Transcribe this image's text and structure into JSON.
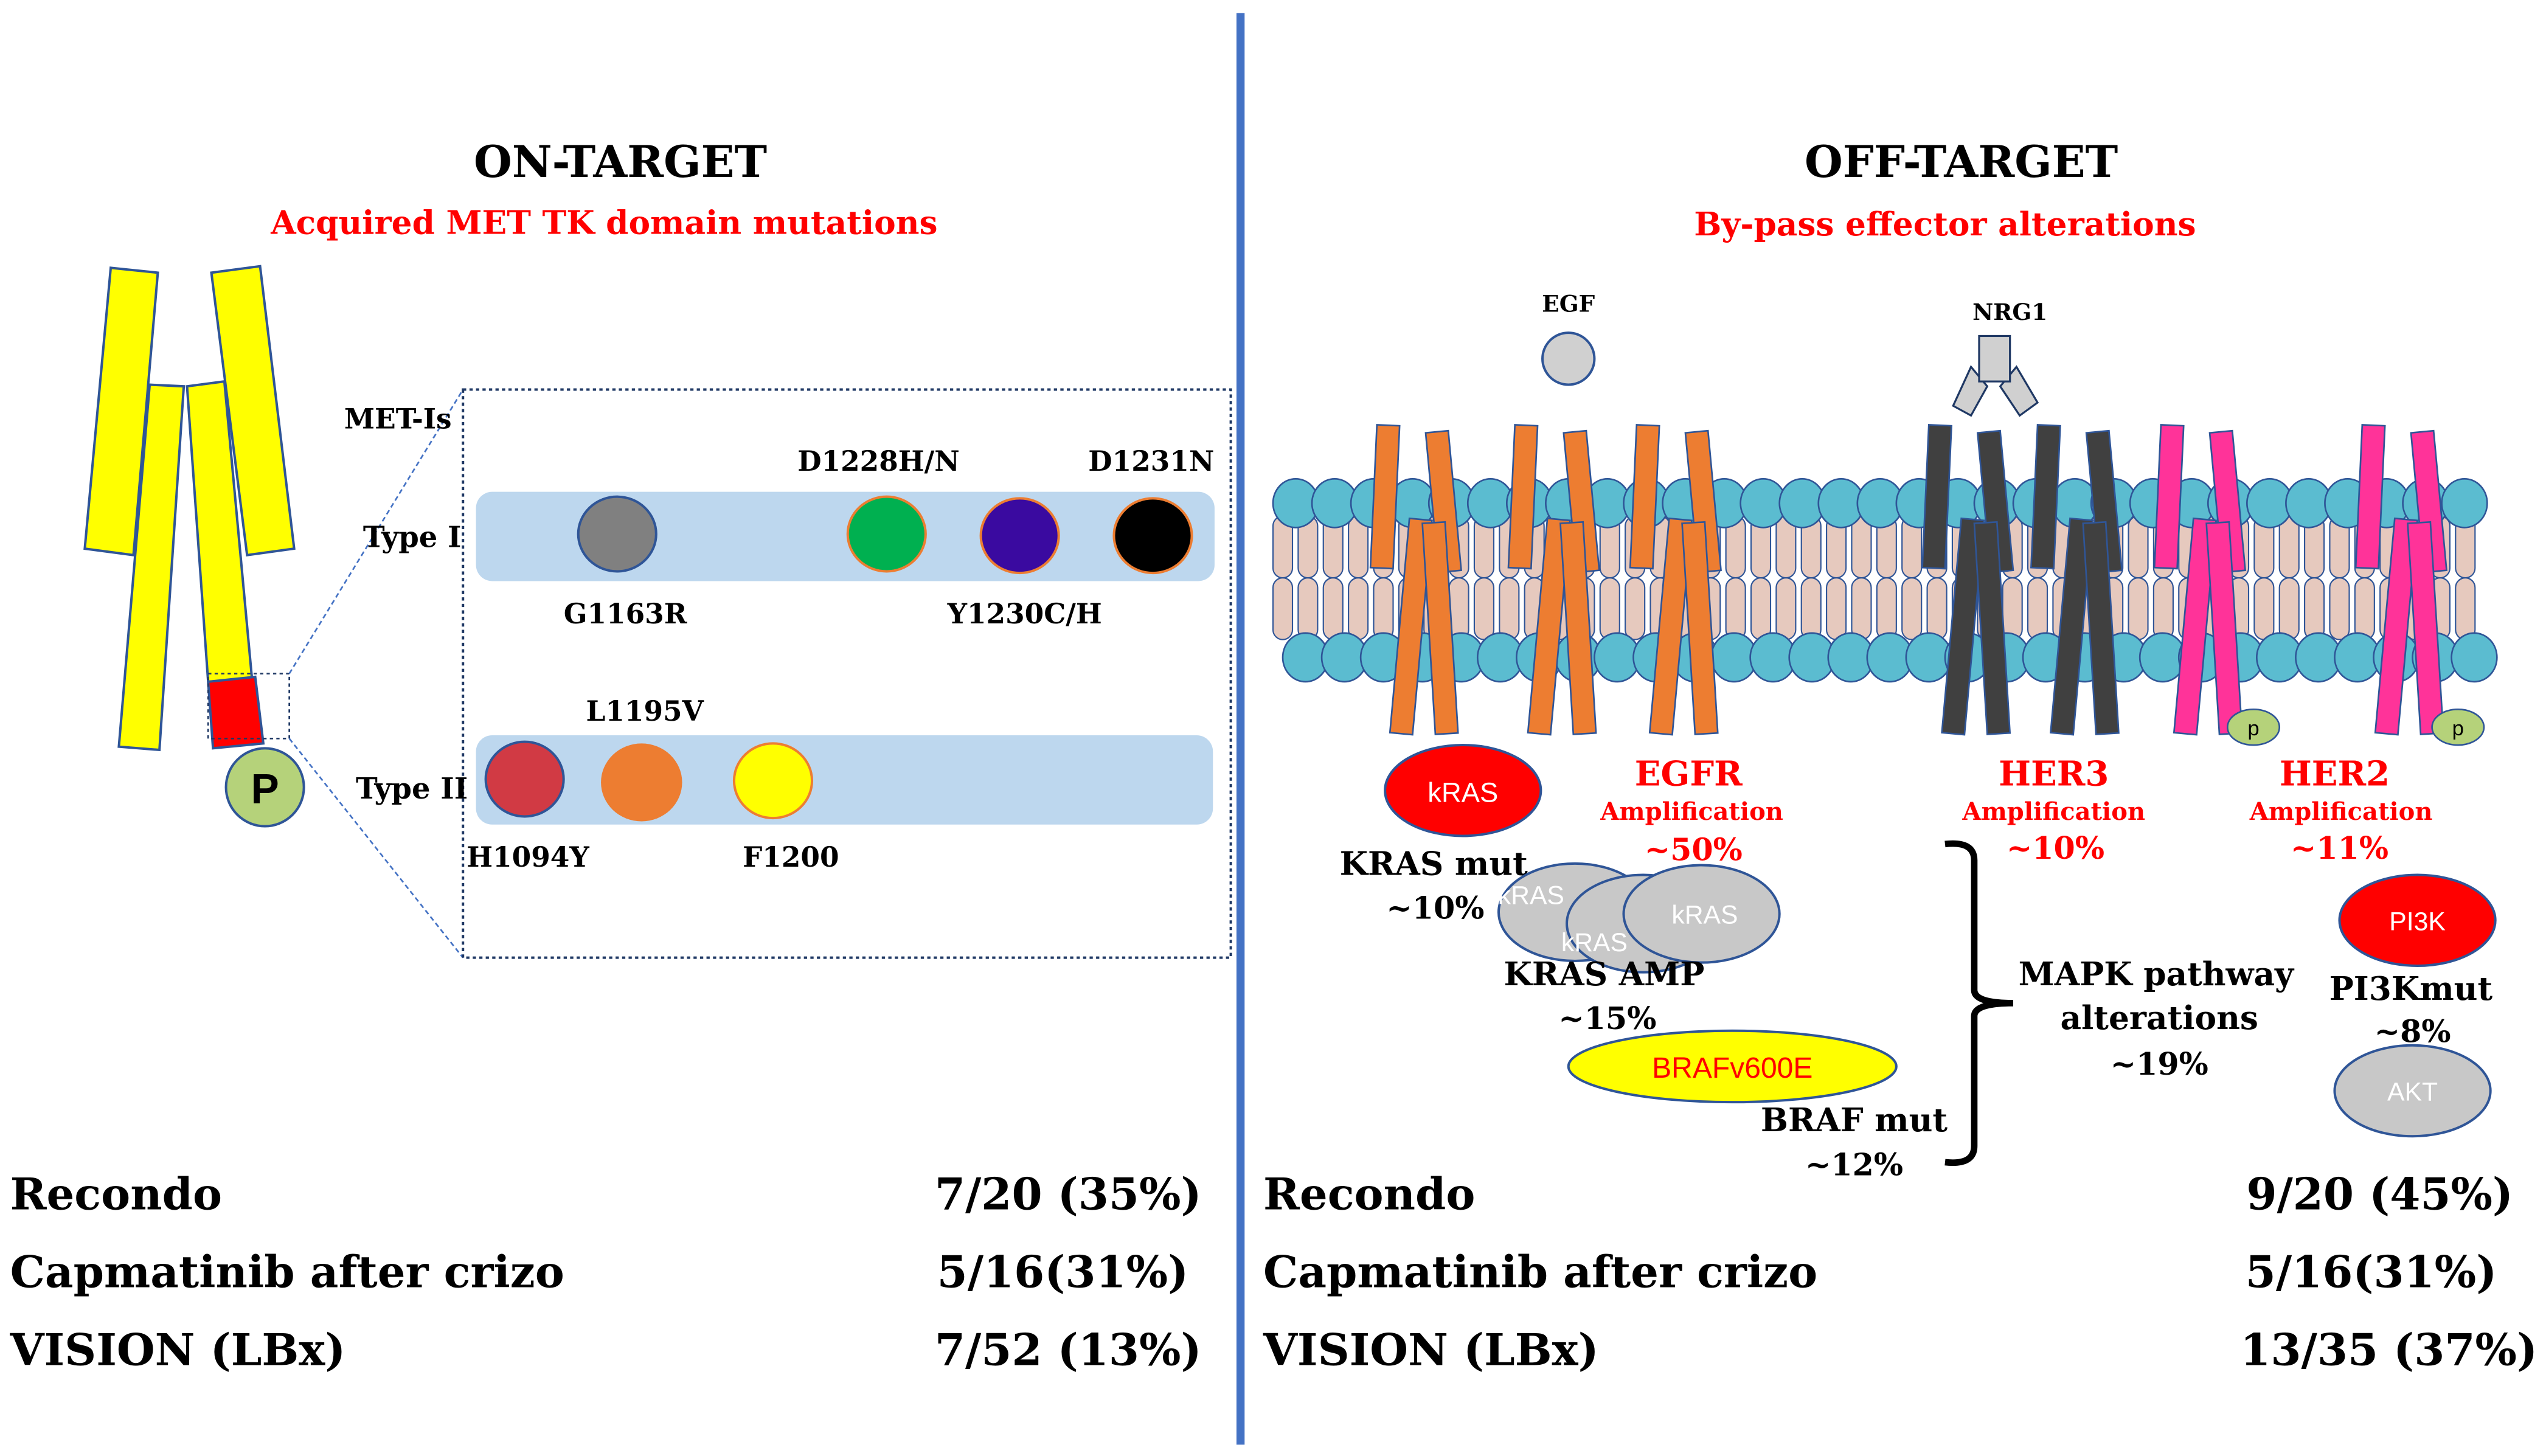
{
  "on_target": {
    "title": "ON-TARGET",
    "subtitle": "Acquired MET TK domain mutations",
    "met_is_label": "MET-Is",
    "phospho_label": "P",
    "type1": {
      "label": "Type I",
      "mutations_above": [
        "D1228H/N",
        "D1231N"
      ],
      "mutations_below": [
        "G1163R",
        "Y1230C/H"
      ]
    },
    "type2": {
      "label": "Type II",
      "mutations_above": [
        "L1195V"
      ],
      "mutations_below": [
        "H1094Y",
        "F1200"
      ]
    },
    "stats": [
      {
        "study": "Recondo",
        "value": "7/20 (35%)"
      },
      {
        "study": "Capmatinib after crizo",
        "value": "5/16(31%)"
      },
      {
        "study": "VISION (LBx)",
        "value": "7/52 (13%)"
      }
    ]
  },
  "off_target": {
    "title": "OFF-TARGET",
    "subtitle": "By-pass effector alterations",
    "ligands": {
      "egf": "EGF",
      "nrg1": "NRG1"
    },
    "egfr": {
      "name": "EGFR",
      "type": "Amplification",
      "pct": "~50%"
    },
    "her3": {
      "name": "HER3",
      "type": "Amplification",
      "pct": "~10%"
    },
    "her2": {
      "name": "HER2",
      "type": "Amplification",
      "pct": "~11%"
    },
    "kras_node": "kRAS",
    "kras_mut": {
      "label": "KRAS mut",
      "pct": "~10%"
    },
    "kras_amp_nodes": [
      "kRAS",
      "kRAS",
      "kRAS"
    ],
    "kras_amp": {
      "label": "KRAS AMP",
      "pct": "~15%"
    },
    "braf_node": "BRAFv600E",
    "braf_mut": {
      "label": "BRAF mut",
      "pct": "~12%"
    },
    "mapk": {
      "line1": "MAPK pathway",
      "line2": "alterations",
      "pct": "~19%"
    },
    "pi3k_node": "PI3K",
    "pi3k_mut": {
      "label": "PI3Kmut",
      "pct": "~8%"
    },
    "akt_node": "AKT",
    "phospho_label": "p",
    "stats": [
      {
        "study": "Recondo",
        "value": "9/20 (45%)"
      },
      {
        "study": "Capmatinib after crizo",
        "value": "5/16(31%)"
      },
      {
        "study": "VISION (LBx)",
        "value": "13/35 (37%)"
      }
    ]
  },
  "colors": {
    "divider": "#4472C4",
    "met_receptor": "#FFFF00",
    "tk_domain": "#FF0000",
    "band": "#BDD7EE",
    "egfr": "#ED7D31",
    "her3": "#404040",
    "her2": "#FF3399",
    "membrane_head": "#5BBCD0",
    "membrane_tail": "#E6C9BE"
  }
}
